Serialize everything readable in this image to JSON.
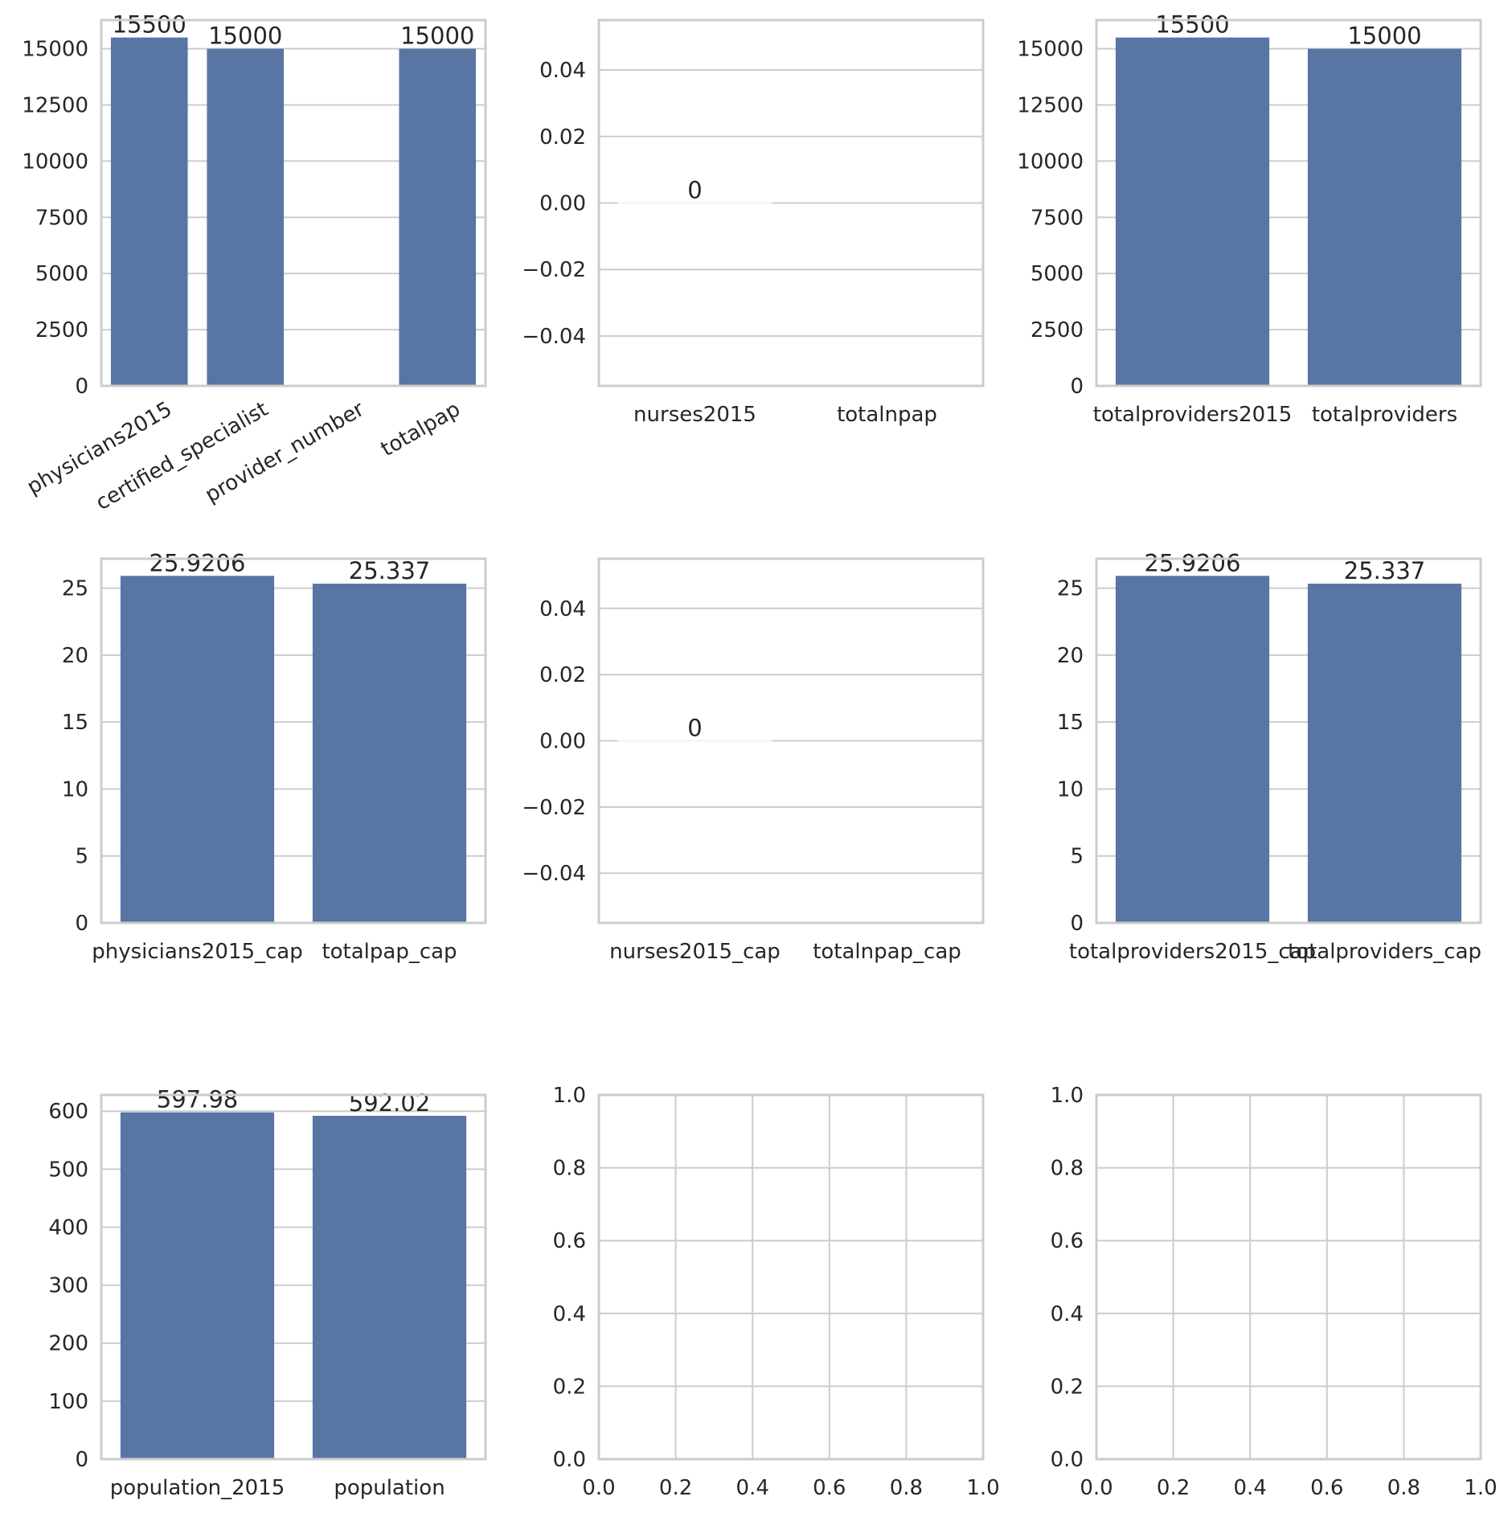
{
  "colors": {
    "bar": "#5975a4",
    "grid": "#cccccc",
    "frame": "#cccccc",
    "text": "#262626"
  },
  "chart_data": [
    {
      "type": "bar",
      "categories": [
        "physicians2015",
        "certified_specialist",
        "provider_number",
        "totalpap"
      ],
      "values": [
        15500,
        15000,
        0,
        15000
      ],
      "bar_labels": [
        "15500",
        "15000",
        "",
        "15000"
      ],
      "ylim": [
        0,
        16275
      ],
      "yticks": [
        0,
        2500,
        5000,
        7500,
        10000,
        12500,
        15000
      ],
      "ytick_labels": [
        "0",
        "2500",
        "5000",
        "7500",
        "10000",
        "12500",
        "15000"
      ],
      "xtick_rotation": -30,
      "grid": true
    },
    {
      "type": "bar",
      "categories": [
        "nurses2015",
        "totalnpap"
      ],
      "values": [
        0,
        null
      ],
      "bar_labels": [
        "0",
        ""
      ],
      "ylim": [
        -0.055,
        0.055
      ],
      "yticks": [
        -0.04,
        -0.02,
        0,
        0.02,
        0.04
      ],
      "ytick_labels": [
        "−0.04",
        "−0.02",
        "0.00",
        "0.02",
        "0.04"
      ],
      "grid": true
    },
    {
      "type": "bar",
      "categories": [
        "totalproviders2015",
        "totalproviders"
      ],
      "values": [
        15500,
        15000
      ],
      "bar_labels": [
        "15500",
        "15000"
      ],
      "ylim": [
        0,
        16275
      ],
      "yticks": [
        0,
        2500,
        5000,
        7500,
        10000,
        12500,
        15000
      ],
      "ytick_labels": [
        "0",
        "2500",
        "5000",
        "7500",
        "10000",
        "12500",
        "15000"
      ],
      "grid": true
    },
    {
      "type": "bar",
      "categories": [
        "physicians2015_cap",
        "totalpap_cap"
      ],
      "values": [
        25.9206,
        25.337
      ],
      "bar_labels": [
        "25.9206",
        "25.337"
      ],
      "ylim": [
        0,
        27.2
      ],
      "yticks": [
        0,
        5,
        10,
        15,
        20,
        25
      ],
      "ytick_labels": [
        "0",
        "5",
        "10",
        "15",
        "20",
        "25"
      ],
      "grid": true
    },
    {
      "type": "bar",
      "categories": [
        "nurses2015_cap",
        "totalnpap_cap"
      ],
      "values": [
        0,
        null
      ],
      "bar_labels": [
        "0",
        ""
      ],
      "ylim": [
        -0.055,
        0.055
      ],
      "yticks": [
        -0.04,
        -0.02,
        0,
        0.02,
        0.04
      ],
      "ytick_labels": [
        "−0.04",
        "−0.02",
        "0.00",
        "0.02",
        "0.04"
      ],
      "grid": true
    },
    {
      "type": "bar",
      "categories": [
        "totalproviders2015_cap",
        "totalproviders_cap"
      ],
      "values": [
        25.9206,
        25.337
      ],
      "bar_labels": [
        "25.9206",
        "25.337"
      ],
      "ylim": [
        0,
        27.2
      ],
      "yticks": [
        0,
        5,
        10,
        15,
        20,
        25
      ],
      "ytick_labels": [
        "0",
        "5",
        "10",
        "15",
        "20",
        "25"
      ],
      "grid": true
    },
    {
      "type": "bar",
      "categories": [
        "population_2015",
        "population"
      ],
      "values": [
        597.98,
        592.02
      ],
      "bar_labels": [
        "597.98",
        "592.02"
      ],
      "ylim": [
        0,
        628
      ],
      "yticks": [
        0,
        100,
        200,
        300,
        400,
        500,
        600
      ],
      "ytick_labels": [
        "0",
        "100",
        "200",
        "300",
        "400",
        "500",
        "600"
      ],
      "grid": true
    },
    {
      "type": "empty",
      "xlim": [
        0,
        1
      ],
      "ylim": [
        0,
        1
      ],
      "xticks": [
        0,
        0.2,
        0.4,
        0.6,
        0.8,
        1.0
      ],
      "xtick_labels": [
        "0.0",
        "0.2",
        "0.4",
        "0.6",
        "0.8",
        "1.0"
      ],
      "yticks": [
        0,
        0.2,
        0.4,
        0.6,
        0.8,
        1.0
      ],
      "ytick_labels": [
        "0.0",
        "0.2",
        "0.4",
        "0.6",
        "0.8",
        "1.0"
      ],
      "grid": true
    },
    {
      "type": "empty",
      "xlim": [
        0,
        1
      ],
      "ylim": [
        0,
        1
      ],
      "xticks": [
        0,
        0.2,
        0.4,
        0.6,
        0.8,
        1.0
      ],
      "xtick_labels": [
        "0.0",
        "0.2",
        "0.4",
        "0.6",
        "0.8",
        "1.0"
      ],
      "yticks": [
        0,
        0.2,
        0.4,
        0.6,
        0.8,
        1.0
      ],
      "ytick_labels": [
        "0.0",
        "0.2",
        "0.4",
        "0.6",
        "0.8",
        "1.0"
      ],
      "grid": true
    }
  ]
}
